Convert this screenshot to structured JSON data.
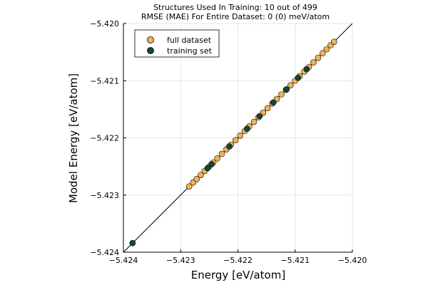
{
  "chart_data": {
    "type": "scatter",
    "title_lines": [
      "Structures Used In Training:  10 out of 499",
      "RMSE (MAE) For Entire Dataset:  0 (0) meV/atom"
    ],
    "xlabel": "Energy [eV/atom]",
    "ylabel": "Model Energy [eV/atom]",
    "xlim": [
      -5.424,
      -5.42
    ],
    "ylim": [
      -5.424,
      -5.42
    ],
    "x_ticks": [
      -5.424,
      -5.423,
      -5.422,
      -5.421,
      -5.42
    ],
    "y_ticks": [
      -5.424,
      -5.423,
      -5.422,
      -5.421,
      -5.42
    ],
    "x_tick_labels": [
      "−5.424",
      "−5.423",
      "−5.422",
      "−5.421",
      "−5.420"
    ],
    "y_tick_labels": [
      "−5.424",
      "−5.423",
      "−5.422",
      "−5.421",
      "−5.420"
    ],
    "grid": true,
    "identity_line": true,
    "legend_position": "top-left",
    "series": [
      {
        "name": "full dataset",
        "color": "#f1b255",
        "x": [
          -5.42285,
          -5.42278,
          -5.42272,
          -5.42265,
          -5.42258,
          -5.4225,
          -5.42243,
          -5.42236,
          -5.42228,
          -5.4222,
          -5.42212,
          -5.42204,
          -5.42196,
          -5.42188,
          -5.4218,
          -5.42172,
          -5.42164,
          -5.42156,
          -5.42148,
          -5.4214,
          -5.42132,
          -5.42124,
          -5.42116,
          -5.42108,
          -5.421,
          -5.42092,
          -5.42084,
          -5.42076,
          -5.42068,
          -5.4206,
          -5.42052,
          -5.42045,
          -5.42038,
          -5.42032
        ],
        "y": [
          -5.42285,
          -5.42278,
          -5.42272,
          -5.42265,
          -5.42258,
          -5.4225,
          -5.42243,
          -5.42236,
          -5.42228,
          -5.4222,
          -5.42212,
          -5.42204,
          -5.42196,
          -5.42188,
          -5.4218,
          -5.42172,
          -5.42164,
          -5.42156,
          -5.42148,
          -5.4214,
          -5.42132,
          -5.42124,
          -5.42116,
          -5.42108,
          -5.421,
          -5.42092,
          -5.42084,
          -5.42076,
          -5.42068,
          -5.4206,
          -5.42052,
          -5.42045,
          -5.42038,
          -5.42032
        ]
      },
      {
        "name": "training set",
        "color": "#0f4a37",
        "x": [
          -5.42384,
          -5.42253,
          -5.42246,
          -5.42215,
          -5.42184,
          -5.42162,
          -5.42138,
          -5.42115,
          -5.42095,
          -5.4208
        ],
        "y": [
          -5.42384,
          -5.42253,
          -5.42246,
          -5.42215,
          -5.42184,
          -5.42162,
          -5.42138,
          -5.42115,
          -5.42095,
          -5.4208
        ]
      }
    ]
  }
}
